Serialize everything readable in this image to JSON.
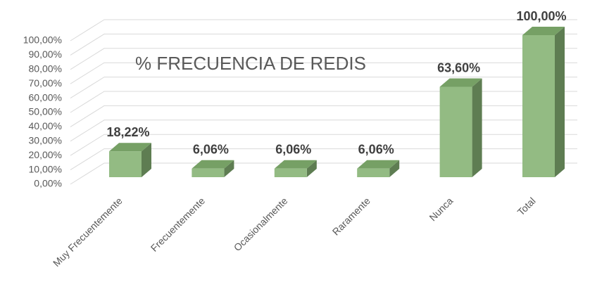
{
  "chart_data": {
    "type": "bar",
    "title": "% FRECUENCIA DE REDIS",
    "categories": [
      "Muy Frecuentemente",
      "Frecuentemente",
      "Ocasionalmente",
      "Raramente",
      "Nunca",
      "Total"
    ],
    "values": [
      18.22,
      6.06,
      6.06,
      6.06,
      63.6,
      100
    ],
    "value_labels": [
      "18,22%",
      "6,06%",
      "6,06%",
      "6,06%",
      "63,60%",
      "100,00%"
    ],
    "color": "#93bb83",
    "ylim": [
      0,
      100
    ],
    "yticks": [
      {
        "value": 0,
        "label": "0,00%"
      },
      {
        "value": 10,
        "label": "10,00%"
      },
      {
        "value": 20,
        "label": "20,00%"
      },
      {
        "value": 30,
        "label": "30,00%"
      },
      {
        "value": 40,
        "label": "40,00%"
      },
      {
        "value": 50,
        "label": "50,00%"
      },
      {
        "value": 60,
        "label": "60,00%"
      },
      {
        "value": 70,
        "label": "70,00%"
      },
      {
        "value": 80,
        "label": "80,00%"
      },
      {
        "value": 90,
        "label": "90,00%"
      },
      {
        "value": 100,
        "label": "100,00%"
      }
    ],
    "grid": true
  }
}
